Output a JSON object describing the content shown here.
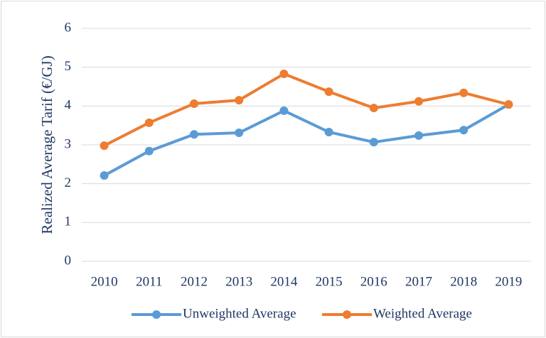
{
  "chart_data": {
    "type": "line",
    "y_label": "Realized Average Tarif (€/GJ)",
    "categories": [
      "2010",
      "2011",
      "2012",
      "2013",
      "2014",
      "2015",
      "2016",
      "2017",
      "2018",
      "2019"
    ],
    "series": [
      {
        "name": "Unweighted Average",
        "color": "#5b9bd5",
        "values": [
          2.21,
          2.84,
          3.27,
          3.31,
          3.88,
          3.33,
          3.07,
          3.24,
          3.38,
          4.04
        ]
      },
      {
        "name": "Weighted Average",
        "color": "#ed7d31",
        "values": [
          2.98,
          3.57,
          4.06,
          4.15,
          4.83,
          4.37,
          3.95,
          4.12,
          4.34,
          4.04
        ]
      }
    ],
    "ylim": [
      0,
      6
    ],
    "yticks": [
      0,
      1,
      2,
      3,
      4,
      5,
      6
    ],
    "grid": true,
    "legend": "bottom"
  }
}
